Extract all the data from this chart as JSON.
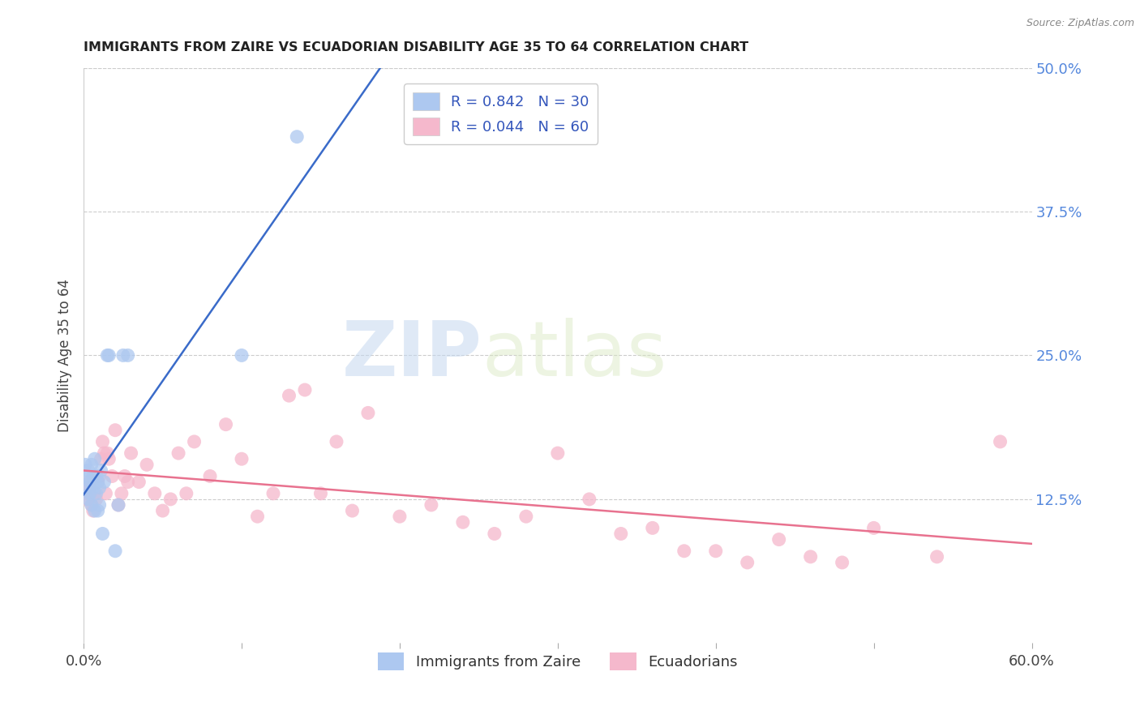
{
  "title": "IMMIGRANTS FROM ZAIRE VS ECUADORIAN DISABILITY AGE 35 TO 64 CORRELATION CHART",
  "source": "Source: ZipAtlas.com",
  "ylabel": "Disability Age 35 to 64",
  "xlim": [
    0.0,
    0.6
  ],
  "ylim": [
    0.0,
    0.5
  ],
  "xticks": [
    0.0,
    0.1,
    0.2,
    0.3,
    0.4,
    0.5,
    0.6
  ],
  "yticks_right": [
    0.125,
    0.25,
    0.375,
    0.5
  ],
  "ytick_right_labels": [
    "12.5%",
    "25.0%",
    "37.5%",
    "50.0%"
  ],
  "legend1_label": "R = 0.842   N = 30",
  "legend2_label": "R = 0.044   N = 60",
  "legend_bottom1": "Immigrants from Zaire",
  "legend_bottom2": "Ecuadorians",
  "watermark_zip": "ZIP",
  "watermark_atlas": "atlas",
  "blue_color": "#adc8f0",
  "pink_color": "#f5b8cc",
  "blue_line_color": "#3a6bc9",
  "pink_line_color": "#e8728f",
  "blue_scatter_x": [
    0.001,
    0.002,
    0.002,
    0.003,
    0.003,
    0.004,
    0.004,
    0.005,
    0.005,
    0.006,
    0.006,
    0.007,
    0.007,
    0.008,
    0.008,
    0.009,
    0.009,
    0.01,
    0.01,
    0.011,
    0.012,
    0.013,
    0.015,
    0.016,
    0.02,
    0.022,
    0.025,
    0.028,
    0.1,
    0.135
  ],
  "blue_scatter_y": [
    0.155,
    0.145,
    0.135,
    0.15,
    0.125,
    0.14,
    0.13,
    0.155,
    0.12,
    0.145,
    0.135,
    0.16,
    0.115,
    0.145,
    0.13,
    0.14,
    0.115,
    0.135,
    0.12,
    0.15,
    0.095,
    0.14,
    0.25,
    0.25,
    0.08,
    0.12,
    0.25,
    0.25,
    0.25,
    0.44
  ],
  "pink_scatter_x": [
    0.001,
    0.002,
    0.003,
    0.004,
    0.005,
    0.006,
    0.007,
    0.008,
    0.009,
    0.01,
    0.011,
    0.012,
    0.013,
    0.014,
    0.015,
    0.016,
    0.018,
    0.02,
    0.022,
    0.024,
    0.026,
    0.028,
    0.03,
    0.035,
    0.04,
    0.045,
    0.05,
    0.055,
    0.06,
    0.065,
    0.07,
    0.08,
    0.09,
    0.1,
    0.11,
    0.12,
    0.13,
    0.14,
    0.15,
    0.16,
    0.17,
    0.18,
    0.2,
    0.22,
    0.24,
    0.26,
    0.28,
    0.3,
    0.32,
    0.34,
    0.36,
    0.38,
    0.4,
    0.42,
    0.44,
    0.46,
    0.48,
    0.5,
    0.54,
    0.58
  ],
  "pink_scatter_y": [
    0.13,
    0.125,
    0.14,
    0.135,
    0.12,
    0.115,
    0.13,
    0.125,
    0.14,
    0.145,
    0.16,
    0.175,
    0.165,
    0.13,
    0.165,
    0.16,
    0.145,
    0.185,
    0.12,
    0.13,
    0.145,
    0.14,
    0.165,
    0.14,
    0.155,
    0.13,
    0.115,
    0.125,
    0.165,
    0.13,
    0.175,
    0.145,
    0.19,
    0.16,
    0.11,
    0.13,
    0.215,
    0.22,
    0.13,
    0.175,
    0.115,
    0.2,
    0.11,
    0.12,
    0.105,
    0.095,
    0.11,
    0.165,
    0.125,
    0.095,
    0.1,
    0.08,
    0.08,
    0.07,
    0.09,
    0.075,
    0.07,
    0.1,
    0.075,
    0.175
  ]
}
